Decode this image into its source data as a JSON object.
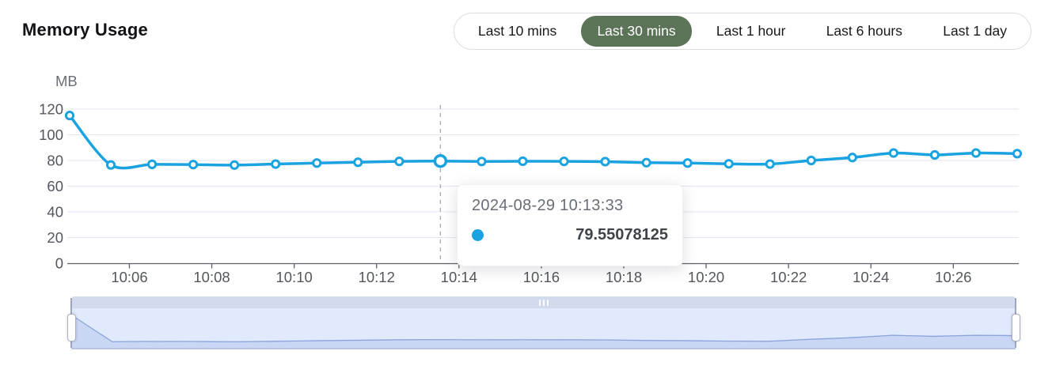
{
  "header": {
    "title": "Memory Usage"
  },
  "time_range": {
    "options": [
      "Last 10 mins",
      "Last 30 mins",
      "Last 1 hour",
      "Last 6 hours",
      "Last 1 day"
    ],
    "selected_index": 1,
    "selected_bg_color": "#5b7357"
  },
  "tooltip": {
    "timestamp": "2024-08-29 10:13:33",
    "value": "79.55078125",
    "marker_color": "#1aa3e0"
  },
  "chart_data": {
    "type": "line",
    "title": "Memory Usage",
    "unit": "MB",
    "ylabel": "MB",
    "xlabel": "",
    "grid": true,
    "legend": false,
    "ylim": [
      0,
      120
    ],
    "y_ticks": [
      0,
      20,
      40,
      60,
      80,
      100,
      120
    ],
    "x_tick_labels": [
      "10:06",
      "10:08",
      "10:10",
      "10:12",
      "10:14",
      "10:16",
      "10:18",
      "10:20",
      "10:22",
      "10:24",
      "10:26"
    ],
    "x": [
      "10:04:33",
      "10:05:33",
      "10:06:33",
      "10:07:33",
      "10:08:33",
      "10:09:33",
      "10:10:33",
      "10:11:33",
      "10:12:33",
      "10:13:33",
      "10:14:33",
      "10:15:33",
      "10:16:33",
      "10:17:33",
      "10:18:33",
      "10:19:33",
      "10:20:33",
      "10:21:33",
      "10:22:33",
      "10:23:33",
      "10:24:33",
      "10:25:33",
      "10:26:33",
      "10:27:33"
    ],
    "values": [
      115,
      76.5,
      77,
      76.8,
      76.4,
      77.2,
      78,
      78.6,
      79.3,
      79.55078125,
      79.2,
      79.4,
      79.3,
      79.1,
      78.3,
      78,
      77.4,
      77.2,
      80,
      82.3,
      85.8,
      84.3,
      85.8,
      85.3
    ],
    "highlight_index": 9,
    "line_color": "#1aa3e0",
    "grid_color": "#e3e6f0",
    "axis_color": "#5d6169",
    "label_color": "#54575d"
  },
  "data_zoom": {
    "area_fill_color": "#c9d6f4",
    "area_line_color": "#8ba4dc",
    "move_handle_color": "#d2dbee"
  }
}
